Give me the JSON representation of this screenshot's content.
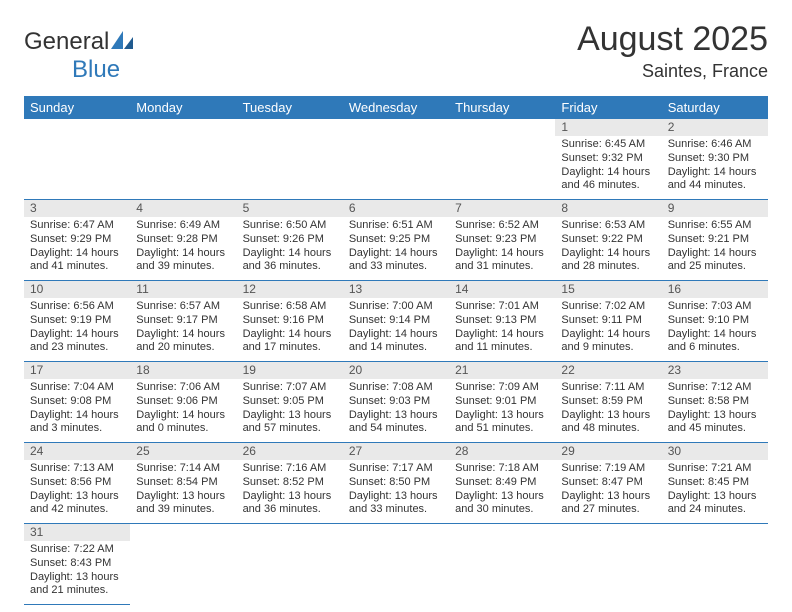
{
  "brand": {
    "text1": "General",
    "text2": "Blue",
    "color_dark": "#333333",
    "color_blue": "#2f79b9"
  },
  "title": "August 2025",
  "location": "Saintes, France",
  "header_bg": "#2f79b9",
  "daynum_bg": "#e9e9e9",
  "line_color": "#2f79b9",
  "weekdays": [
    "Sunday",
    "Monday",
    "Tuesday",
    "Wednesday",
    "Thursday",
    "Friday",
    "Saturday"
  ],
  "days": {
    "1": {
      "sr": "Sunrise: 6:45 AM",
      "ss": "Sunset: 9:32 PM",
      "d1": "Daylight: 14 hours",
      "d2": "and 46 minutes."
    },
    "2": {
      "sr": "Sunrise: 6:46 AM",
      "ss": "Sunset: 9:30 PM",
      "d1": "Daylight: 14 hours",
      "d2": "and 44 minutes."
    },
    "3": {
      "sr": "Sunrise: 6:47 AM",
      "ss": "Sunset: 9:29 PM",
      "d1": "Daylight: 14 hours",
      "d2": "and 41 minutes."
    },
    "4": {
      "sr": "Sunrise: 6:49 AM",
      "ss": "Sunset: 9:28 PM",
      "d1": "Daylight: 14 hours",
      "d2": "and 39 minutes."
    },
    "5": {
      "sr": "Sunrise: 6:50 AM",
      "ss": "Sunset: 9:26 PM",
      "d1": "Daylight: 14 hours",
      "d2": "and 36 minutes."
    },
    "6": {
      "sr": "Sunrise: 6:51 AM",
      "ss": "Sunset: 9:25 PM",
      "d1": "Daylight: 14 hours",
      "d2": "and 33 minutes."
    },
    "7": {
      "sr": "Sunrise: 6:52 AM",
      "ss": "Sunset: 9:23 PM",
      "d1": "Daylight: 14 hours",
      "d2": "and 31 minutes."
    },
    "8": {
      "sr": "Sunrise: 6:53 AM",
      "ss": "Sunset: 9:22 PM",
      "d1": "Daylight: 14 hours",
      "d2": "and 28 minutes."
    },
    "9": {
      "sr": "Sunrise: 6:55 AM",
      "ss": "Sunset: 9:21 PM",
      "d1": "Daylight: 14 hours",
      "d2": "and 25 minutes."
    },
    "10": {
      "sr": "Sunrise: 6:56 AM",
      "ss": "Sunset: 9:19 PM",
      "d1": "Daylight: 14 hours",
      "d2": "and 23 minutes."
    },
    "11": {
      "sr": "Sunrise: 6:57 AM",
      "ss": "Sunset: 9:17 PM",
      "d1": "Daylight: 14 hours",
      "d2": "and 20 minutes."
    },
    "12": {
      "sr": "Sunrise: 6:58 AM",
      "ss": "Sunset: 9:16 PM",
      "d1": "Daylight: 14 hours",
      "d2": "and 17 minutes."
    },
    "13": {
      "sr": "Sunrise: 7:00 AM",
      "ss": "Sunset: 9:14 PM",
      "d1": "Daylight: 14 hours",
      "d2": "and 14 minutes."
    },
    "14": {
      "sr": "Sunrise: 7:01 AM",
      "ss": "Sunset: 9:13 PM",
      "d1": "Daylight: 14 hours",
      "d2": "and 11 minutes."
    },
    "15": {
      "sr": "Sunrise: 7:02 AM",
      "ss": "Sunset: 9:11 PM",
      "d1": "Daylight: 14 hours",
      "d2": "and 9 minutes."
    },
    "16": {
      "sr": "Sunrise: 7:03 AM",
      "ss": "Sunset: 9:10 PM",
      "d1": "Daylight: 14 hours",
      "d2": "and 6 minutes."
    },
    "17": {
      "sr": "Sunrise: 7:04 AM",
      "ss": "Sunset: 9:08 PM",
      "d1": "Daylight: 14 hours",
      "d2": "and 3 minutes."
    },
    "18": {
      "sr": "Sunrise: 7:06 AM",
      "ss": "Sunset: 9:06 PM",
      "d1": "Daylight: 14 hours",
      "d2": "and 0 minutes."
    },
    "19": {
      "sr": "Sunrise: 7:07 AM",
      "ss": "Sunset: 9:05 PM",
      "d1": "Daylight: 13 hours",
      "d2": "and 57 minutes."
    },
    "20": {
      "sr": "Sunrise: 7:08 AM",
      "ss": "Sunset: 9:03 PM",
      "d1": "Daylight: 13 hours",
      "d2": "and 54 minutes."
    },
    "21": {
      "sr": "Sunrise: 7:09 AM",
      "ss": "Sunset: 9:01 PM",
      "d1": "Daylight: 13 hours",
      "d2": "and 51 minutes."
    },
    "22": {
      "sr": "Sunrise: 7:11 AM",
      "ss": "Sunset: 8:59 PM",
      "d1": "Daylight: 13 hours",
      "d2": "and 48 minutes."
    },
    "23": {
      "sr": "Sunrise: 7:12 AM",
      "ss": "Sunset: 8:58 PM",
      "d1": "Daylight: 13 hours",
      "d2": "and 45 minutes."
    },
    "24": {
      "sr": "Sunrise: 7:13 AM",
      "ss": "Sunset: 8:56 PM",
      "d1": "Daylight: 13 hours",
      "d2": "and 42 minutes."
    },
    "25": {
      "sr": "Sunrise: 7:14 AM",
      "ss": "Sunset: 8:54 PM",
      "d1": "Daylight: 13 hours",
      "d2": "and 39 minutes."
    },
    "26": {
      "sr": "Sunrise: 7:16 AM",
      "ss": "Sunset: 8:52 PM",
      "d1": "Daylight: 13 hours",
      "d2": "and 36 minutes."
    },
    "27": {
      "sr": "Sunrise: 7:17 AM",
      "ss": "Sunset: 8:50 PM",
      "d1": "Daylight: 13 hours",
      "d2": "and 33 minutes."
    },
    "28": {
      "sr": "Sunrise: 7:18 AM",
      "ss": "Sunset: 8:49 PM",
      "d1": "Daylight: 13 hours",
      "d2": "and 30 minutes."
    },
    "29": {
      "sr": "Sunrise: 7:19 AM",
      "ss": "Sunset: 8:47 PM",
      "d1": "Daylight: 13 hours",
      "d2": "and 27 minutes."
    },
    "30": {
      "sr": "Sunrise: 7:21 AM",
      "ss": "Sunset: 8:45 PM",
      "d1": "Daylight: 13 hours",
      "d2": "and 24 minutes."
    },
    "31": {
      "sr": "Sunrise: 7:22 AM",
      "ss": "Sunset: 8:43 PM",
      "d1": "Daylight: 13 hours",
      "d2": "and 21 minutes."
    }
  },
  "grid": [
    [
      null,
      null,
      null,
      null,
      null,
      "1",
      "2"
    ],
    [
      "3",
      "4",
      "5",
      "6",
      "7",
      "8",
      "9"
    ],
    [
      "10",
      "11",
      "12",
      "13",
      "14",
      "15",
      "16"
    ],
    [
      "17",
      "18",
      "19",
      "20",
      "21",
      "22",
      "23"
    ],
    [
      "24",
      "25",
      "26",
      "27",
      "28",
      "29",
      "30"
    ],
    [
      "31",
      null,
      null,
      null,
      null,
      null,
      null
    ]
  ]
}
